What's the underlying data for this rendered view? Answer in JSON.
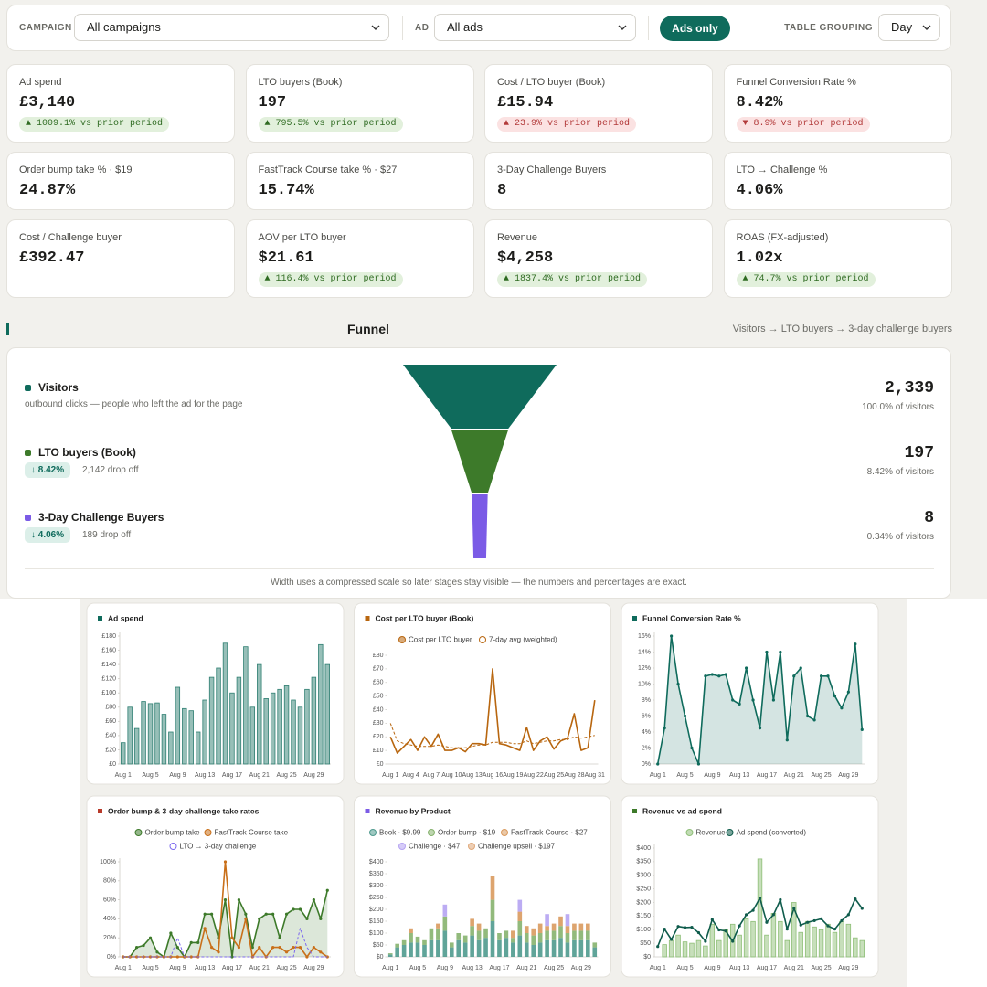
{
  "filters": {
    "campaign_label": "CAMPAIGN",
    "campaign": "All campaigns",
    "ad_label": "AD",
    "ad": "All ads",
    "button": "Ads only",
    "grouping_label": "TABLE GROUPING",
    "grouping": "Day"
  },
  "kpis": [
    {
      "label": "Ad spend",
      "value": "£3,140",
      "delta": "▲ 1009.1% vs prior period",
      "delta_tone": "positive"
    },
    {
      "label": "LTO buyers (Book)",
      "value": "197",
      "delta": "▲ 795.5% vs prior period",
      "delta_tone": "positive"
    },
    {
      "label": "Cost / LTO buyer (Book)",
      "value": "£15.94",
      "delta": "▲ 23.9% vs prior period",
      "delta_tone": "negative"
    },
    {
      "label": "Funnel Conversion Rate %",
      "value": "8.42%",
      "delta": "▼ 8.9% vs prior period",
      "delta_tone": "negative"
    },
    {
      "label": "Order bump take % · $19",
      "value": "24.87%"
    },
    {
      "label": "FastTrack Course take % · $27",
      "value": "15.74%"
    },
    {
      "label": "3-Day Challenge Buyers",
      "value": "8"
    },
    {
      "label": "LTO → Challenge %",
      "value": "4.06%"
    },
    {
      "label": "Cost / Challenge buyer",
      "value": "£392.47"
    },
    {
      "label": "AOV per LTO buyer",
      "value": "$21.61",
      "delta": "▲ 116.4% vs prior period",
      "delta_tone": "positive"
    },
    {
      "label": "Revenue",
      "value": "$4,258",
      "delta": "▲ 1837.4% vs prior period",
      "delta_tone": "positive"
    },
    {
      "label": "ROAS (FX-adjusted)",
      "value": "1.02x",
      "delta": "▲ 74.7% vs prior period",
      "delta_tone": "positive"
    }
  ],
  "funnel": {
    "title": "Funnel",
    "subtitle": "Visitors → LTO buyers → 3-day challenge buyers",
    "stages": [
      {
        "name": "Visitors",
        "note": "outbound clicks — people who left the ad for the page",
        "count": 2339,
        "count_label": "2,339",
        "share": "100.0% of visitors",
        "color": "#0f6b5c"
      },
      {
        "name": "LTO buyers (Book)",
        "badge": "↓ 8.42%",
        "drop": "2,142 drop off",
        "count": 197,
        "share": "8.42% of visitors",
        "color": "#3d7a2a"
      },
      {
        "name": "3-Day Challenge Buyers",
        "badge": "↓ 4.06%",
        "drop": "189 drop off",
        "count": 8,
        "share": "0.34% of visitors",
        "color": "#7b5be6"
      }
    ],
    "footnote": "Width uses a compressed scale so later stages stay visible — the numbers and percentages are exact."
  },
  "chart_data": [
    {
      "type": "bar",
      "title": "Ad spend",
      "accent": "#0f6b5c",
      "color": "#2f7f72",
      "categories": [
        "Aug 1",
        null,
        null,
        null,
        "Aug 5",
        null,
        null,
        null,
        "Aug 9",
        null,
        null,
        null,
        "Aug 13",
        null,
        null,
        null,
        "Aug 17",
        null,
        null,
        null,
        "Aug 21",
        null,
        null,
        null,
        "Aug 25",
        null,
        null,
        null,
        "Aug 29",
        null,
        null
      ],
      "values": [
        30,
        80,
        50,
        88,
        85,
        86,
        70,
        45,
        108,
        78,
        75,
        45,
        90,
        122,
        135,
        170,
        100,
        122,
        165,
        80,
        140,
        92,
        100,
        105,
        110,
        90,
        80,
        105,
        122,
        168,
        140
      ],
      "ylim": [
        0,
        180
      ],
      "yticks": [
        {
          "value": 0,
          "label": "£0"
        },
        {
          "value": 20,
          "label": "£20"
        },
        {
          "value": 40,
          "label": "£40"
        },
        {
          "value": 60,
          "label": "£60"
        },
        {
          "value": 80,
          "label": "£80"
        },
        {
          "value": 100,
          "label": "£100"
        },
        {
          "value": 120,
          "label": "£120"
        },
        {
          "value": 140,
          "label": "£140"
        },
        {
          "value": 160,
          "label": "£160"
        },
        {
          "value": 180,
          "label": "£180"
        }
      ]
    },
    {
      "type": "line",
      "title": "Cost per LTO buyer (Book)",
      "accent": "#b8660f",
      "categories": [
        "Aug 1",
        null,
        null,
        "Aug 4",
        null,
        null,
        "Aug 7",
        null,
        null,
        "Aug 10",
        null,
        null,
        "Aug 13",
        null,
        null,
        "Aug 16",
        null,
        null,
        "Aug 19",
        null,
        null,
        "Aug 22",
        null,
        null,
        "Aug 25",
        null,
        null,
        "Aug 28",
        null,
        null,
        "Aug 31"
      ],
      "series": [
        {
          "name": "Cost per LTO buyer",
          "color": "#b8660f",
          "values": [
            20,
            8,
            13,
            18,
            10,
            20,
            13,
            22,
            10,
            10,
            12,
            9,
            15,
            15,
            14,
            70,
            15,
            14,
            12,
            10,
            27,
            10,
            17,
            20,
            11,
            17,
            19,
            37,
            10,
            12,
            47
          ]
        },
        {
          "name": "7-day avg (weighted)",
          "color": "#b8660f",
          "dashed": true,
          "values": [
            30,
            17,
            15,
            14,
            13,
            13,
            13,
            14,
            13,
            12,
            12,
            12,
            13,
            14,
            14,
            16,
            16,
            16,
            15,
            15,
            17,
            15,
            16,
            17,
            17,
            18,
            18,
            20,
            19,
            20,
            21
          ]
        }
      ],
      "ylim": [
        0,
        80
      ],
      "yticks": [
        {
          "value": 0,
          "label": "£0"
        },
        {
          "value": 10,
          "label": "£10"
        },
        {
          "value": 20,
          "label": "£20"
        },
        {
          "value": 30,
          "label": "£30"
        },
        {
          "value": 40,
          "label": "£40"
        },
        {
          "value": 50,
          "label": "£50"
        },
        {
          "value": 60,
          "label": "£60"
        },
        {
          "value": 70,
          "label": "£70"
        },
        {
          "value": 80,
          "label": "£80"
        }
      ]
    },
    {
      "type": "line",
      "title": "Funnel Conversion Rate %",
      "accent": "#0f6b5c",
      "categories": [
        "Aug 1",
        null,
        null,
        null,
        "Aug 5",
        null,
        null,
        null,
        "Aug 9",
        null,
        null,
        null,
        "Aug 13",
        null,
        null,
        null,
        "Aug 17",
        null,
        null,
        null,
        "Aug 21",
        null,
        null,
        null,
        "Aug 25",
        null,
        null,
        null,
        "Aug 29",
        null,
        null
      ],
      "series": [
        {
          "color": "#0f6b5c",
          "area": true,
          "markers": true,
          "values": [
            0,
            4.5,
            16,
            10,
            6,
            2,
            0,
            11,
            11.2,
            11,
            11.2,
            8,
            7.5,
            12,
            8,
            4.5,
            14,
            8,
            14,
            3,
            11,
            12,
            6,
            5.5,
            11,
            11,
            8.5,
            7,
            9,
            15,
            4.3
          ]
        }
      ],
      "ylim": [
        0,
        16
      ],
      "yticks": [
        {
          "value": 0,
          "label": "0%"
        },
        {
          "value": 2,
          "label": "2%"
        },
        {
          "value": 4,
          "label": "4%"
        },
        {
          "value": 6,
          "label": "6%"
        },
        {
          "value": 8,
          "label": "8%"
        },
        {
          "value": 10,
          "label": "10%"
        },
        {
          "value": 12,
          "label": "12%"
        },
        {
          "value": 14,
          "label": "14%"
        },
        {
          "value": 16,
          "label": "16%"
        }
      ]
    },
    {
      "type": "line",
      "title": "Order bump & 3-day challenge take rates",
      "accent": "#b83a2a",
      "categories": [
        "Aug 1",
        null,
        null,
        null,
        "Aug 5",
        null,
        null,
        null,
        "Aug 9",
        null,
        null,
        null,
        "Aug 13",
        null,
        null,
        null,
        "Aug 17",
        null,
        null,
        null,
        "Aug 21",
        null,
        null,
        null,
        "Aug 25",
        null,
        null,
        null,
        "Aug 29",
        null,
        null
      ],
      "series": [
        {
          "name": "Order bump take",
          "color": "#3d7a2a",
          "area": true,
          "markers": true,
          "values": [
            0,
            0,
            10,
            12,
            20,
            5,
            0,
            25,
            10,
            0,
            15,
            15,
            45,
            45,
            20,
            60,
            0,
            60,
            45,
            10,
            40,
            45,
            45,
            20,
            45,
            50,
            50,
            40,
            60,
            40,
            70
          ]
        },
        {
          "name": "FastTrack Course take",
          "color": "#c9701a",
          "markers": true,
          "values": [
            0,
            0,
            0,
            0,
            0,
            0,
            0,
            0,
            0,
            0,
            0,
            0,
            30,
            10,
            5,
            100,
            20,
            10,
            40,
            0,
            10,
            0,
            10,
            10,
            5,
            10,
            10,
            0,
            10,
            5,
            0
          ]
        },
        {
          "name": "LTO → 3-day challenge",
          "color": "#7b68ee",
          "dashed": true,
          "values": [
            0,
            0,
            0,
            0,
            0,
            0,
            0,
            0,
            20,
            0,
            0,
            0,
            0,
            0,
            0,
            0,
            0,
            0,
            0,
            0,
            0,
            0,
            0,
            0,
            0,
            0,
            30,
            10,
            0,
            0,
            0
          ]
        }
      ],
      "ylim": [
        0,
        100
      ],
      "yticks": [
        {
          "value": 0,
          "label": "0%"
        },
        {
          "value": 20,
          "label": "20%"
        },
        {
          "value": 40,
          "label": "40%"
        },
        {
          "value": 60,
          "label": "60%"
        },
        {
          "value": 80,
          "label": "80%"
        },
        {
          "value": 100,
          "label": "100%"
        }
      ]
    },
    {
      "type": "stacked_bar",
      "title": "Revenue by Product",
      "accent": "#7b5be6",
      "categories": [
        "Aug 1",
        null,
        null,
        null,
        "Aug 5",
        null,
        null,
        null,
        "Aug 9",
        null,
        null,
        null,
        "Aug 13",
        null,
        null,
        null,
        "Aug 17",
        null,
        null,
        null,
        "Aug 21",
        null,
        null,
        null,
        "Aug 25",
        null,
        null,
        null,
        "Aug 29",
        null,
        null
      ],
      "series": [
        {
          "name": "Book · $9.99",
          "color": "#4f9a8e",
          "values": [
            10,
            40,
            50,
            60,
            60,
            50,
            70,
            70,
            110,
            40,
            70,
            60,
            90,
            70,
            80,
            150,
            70,
            80,
            60,
            90,
            60,
            50,
            60,
            70,
            70,
            80,
            60,
            70,
            70,
            70,
            40
          ]
        },
        {
          "name": "Order bump · $19",
          "color": "#86b26e",
          "values": [
            5,
            15,
            20,
            40,
            25,
            20,
            50,
            50,
            60,
            20,
            30,
            30,
            40,
            40,
            40,
            90,
            30,
            30,
            20,
            60,
            40,
            40,
            40,
            40,
            40,
            50,
            40,
            40,
            40,
            40,
            20
          ]
        },
        {
          "name": "FastTrack Course · $27",
          "color": "#d99a5e",
          "values": [
            0,
            0,
            0,
            20,
            0,
            0,
            0,
            20,
            0,
            0,
            0,
            0,
            30,
            30,
            0,
            100,
            0,
            0,
            30,
            40,
            30,
            30,
            40,
            20,
            30,
            40,
            30,
            30,
            30,
            30,
            0
          ]
        },
        {
          "name": "Challenge · $47",
          "color": "#b5a3f2",
          "values": [
            0,
            0,
            0,
            0,
            0,
            0,
            0,
            0,
            50,
            0,
            0,
            0,
            0,
            0,
            0,
            0,
            0,
            0,
            0,
            50,
            0,
            0,
            0,
            50,
            0,
            0,
            50,
            0,
            0,
            0,
            0
          ]
        },
        {
          "name": "Challenge upsell · $197",
          "color": "#e0a878",
          "values": [
            0,
            0,
            0,
            0,
            0,
            0,
            0,
            0,
            0,
            0,
            0,
            0,
            0,
            0,
            0,
            0,
            0,
            0,
            0,
            0,
            0,
            0,
            0,
            0,
            0,
            0,
            0,
            0,
            0,
            0,
            0
          ]
        }
      ],
      "ylim": [
        0,
        400
      ],
      "yticks": [
        {
          "value": 0,
          "label": "$0"
        },
        {
          "value": 50,
          "label": "$50"
        },
        {
          "value": 100,
          "label": "$100"
        },
        {
          "value": 150,
          "label": "$150"
        },
        {
          "value": 200,
          "label": "$200"
        },
        {
          "value": 250,
          "label": "$250"
        },
        {
          "value": 300,
          "label": "$300"
        },
        {
          "value": 350,
          "label": "$350"
        },
        {
          "value": 400,
          "label": "$400"
        }
      ]
    },
    {
      "type": "combo",
      "title": "Revenue vs ad spend",
      "accent": "#3d7a2a",
      "categories": [
        "Aug 1",
        null,
        null,
        null,
        "Aug 5",
        null,
        null,
        null,
        "Aug 9",
        null,
        null,
        null,
        "Aug 13",
        null,
        null,
        null,
        "Aug 17",
        null,
        null,
        null,
        "Aug 21",
        null,
        null,
        null,
        "Aug 25",
        null,
        null,
        null,
        "Aug 29",
        null,
        null
      ],
      "series": [
        {
          "name": "Revenue",
          "color": "#8fbf78",
          "kind": "bar",
          "values": [
            0,
            45,
            60,
            80,
            55,
            50,
            60,
            40,
            120,
            60,
            100,
            120,
            80,
            140,
            130,
            360,
            80,
            160,
            130,
            60,
            200,
            90,
            130,
            110,
            100,
            120,
            90,
            130,
            120,
            70,
            60
          ]
        },
        {
          "name": "Ad spend (converted)",
          "color": "#0f5c4c",
          "kind": "line",
          "markers": true,
          "values": [
            38,
            102,
            64,
            112,
            108,
            109,
            89,
            57,
            137,
            99,
            95,
            57,
            114,
            155,
            171,
            216,
            127,
            155,
            210,
            102,
            178,
            117,
            127,
            133,
            140,
            114,
            102,
            133,
            155,
            213,
            178
          ]
        }
      ],
      "ylim": [
        0,
        400
      ],
      "yticks": [
        {
          "value": 0,
          "label": "$0"
        },
        {
          "value": 50,
          "label": "$50"
        },
        {
          "value": 100,
          "label": "$100"
        },
        {
          "value": 150,
          "label": "$150"
        },
        {
          "value": 200,
          "label": "$200"
        },
        {
          "value": 250,
          "label": "$250"
        },
        {
          "value": 300,
          "label": "$300"
        },
        {
          "value": 350,
          "label": "$350"
        },
        {
          "value": 400,
          "label": "$400"
        }
      ]
    }
  ]
}
